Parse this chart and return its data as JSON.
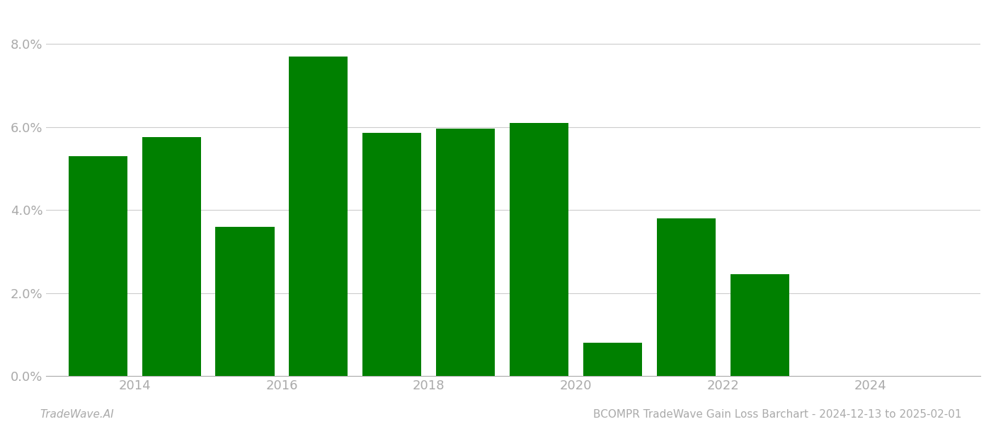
{
  "years": [
    2013.5,
    2014.5,
    2015.5,
    2016.5,
    2017.5,
    2018.5,
    2019.5,
    2020.5,
    2021.5,
    2022.5
  ],
  "values": [
    0.053,
    0.0575,
    0.036,
    0.077,
    0.0585,
    0.0595,
    0.061,
    0.008,
    0.038,
    0.0245
  ],
  "bar_color": "#008000",
  "background_color": "#ffffff",
  "footer_left": "TradeWave.AI",
  "footer_right": "BCOMPR TradeWave Gain Loss Barchart - 2024-12-13 to 2025-02-01",
  "ylim": [
    0,
    0.088
  ],
  "yticks": [
    0.0,
    0.02,
    0.04,
    0.06,
    0.08
  ],
  "xtick_labels": [
    "2014",
    "2016",
    "2018",
    "2020",
    "2022",
    "2024"
  ],
  "xtick_positions": [
    2014,
    2016,
    2018,
    2020,
    2022,
    2024
  ],
  "xlim_left": 2012.8,
  "xlim_right": 2025.5,
  "grid_color": "#cccccc",
  "label_color": "#aaaaaa",
  "bar_width": 0.8
}
